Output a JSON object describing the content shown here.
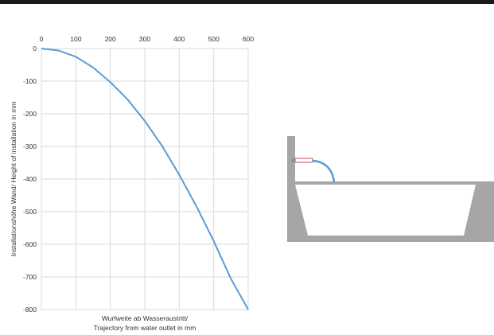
{
  "chart_data": {
    "type": "line",
    "title": "",
    "xlabel_line1": "Wurfweite  ab  Wasseraustritt/",
    "xlabel_line2": "Trajectory  from  water outlet  in  mm",
    "ylabel": "Installationshöhe  Wand/  Height  of  installation  in  mm",
    "xlim": [
      0,
      600
    ],
    "ylim": [
      -800,
      0
    ],
    "x_ticks": [
      0,
      100,
      200,
      300,
      400,
      500,
      600
    ],
    "y_ticks": [
      0,
      -100,
      -200,
      -300,
      -400,
      -500,
      -600,
      -700,
      -800
    ],
    "x_axis_position": "top",
    "grid": true,
    "series": [
      {
        "x": [
          0,
          50,
          100,
          150,
          200,
          250,
          300,
          350,
          400,
          450,
          500,
          550,
          600
        ],
        "y": [
          0,
          -6,
          -25,
          -58,
          -103,
          -156,
          -222,
          -298,
          -387,
          -484,
          -590,
          -706,
          -800
        ],
        "color": "#5b9bd5"
      }
    ]
  },
  "illustration": {
    "wall_color": "#a6a6a6",
    "water_color": "#5b9bd5",
    "spout_color": "#c0504d"
  }
}
